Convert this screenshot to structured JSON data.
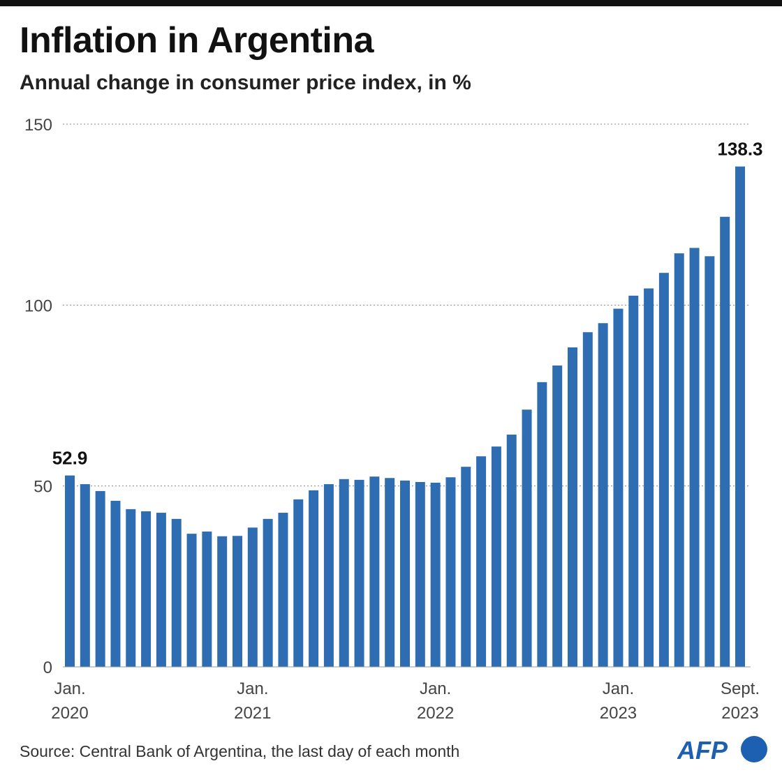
{
  "title": "Inflation in Argentina",
  "subtitle": "Annual change in consumer price index, in %",
  "source": "Source: Central Bank of Argentina, the last day of each month",
  "logo_text": "AFP",
  "colors": {
    "bar": "#2f6db3",
    "logo": "#1d5fb0"
  },
  "chart_data": {
    "type": "bar",
    "title": "Inflation in Argentina",
    "subtitle": "Annual change in consumer price index, in %",
    "ylim": [
      0,
      150
    ],
    "yticks": [
      0,
      50,
      100,
      150
    ],
    "grid": true,
    "x_tick_labels": [
      {
        "index": 0,
        "line1": "Jan.",
        "line2": "2020"
      },
      {
        "index": 12,
        "line1": "Jan.",
        "line2": "2021"
      },
      {
        "index": 24,
        "line1": "Jan.",
        "line2": "2022"
      },
      {
        "index": 36,
        "line1": "Jan.",
        "line2": "2023"
      },
      {
        "index": 44,
        "line1": "Sept.",
        "line2": "2023"
      }
    ],
    "categories": [
      "2020-01",
      "2020-02",
      "2020-03",
      "2020-04",
      "2020-05",
      "2020-06",
      "2020-07",
      "2020-08",
      "2020-09",
      "2020-10",
      "2020-11",
      "2020-12",
      "2021-01",
      "2021-02",
      "2021-03",
      "2021-04",
      "2021-05",
      "2021-06",
      "2021-07",
      "2021-08",
      "2021-09",
      "2021-10",
      "2021-11",
      "2021-12",
      "2022-01",
      "2022-02",
      "2022-03",
      "2022-04",
      "2022-05",
      "2022-06",
      "2022-07",
      "2022-08",
      "2022-09",
      "2022-10",
      "2022-11",
      "2022-12",
      "2023-01",
      "2023-02",
      "2023-03",
      "2023-04",
      "2023-05",
      "2023-06",
      "2023-07",
      "2023-08",
      "2023-09"
    ],
    "values": [
      52.9,
      50.5,
      48.6,
      45.9,
      43.6,
      43.0,
      42.6,
      40.9,
      36.8,
      37.4,
      36.1,
      36.2,
      38.5,
      40.9,
      42.6,
      46.3,
      48.8,
      50.5,
      51.9,
      51.7,
      52.6,
      52.2,
      51.5,
      51.1,
      50.9,
      52.4,
      55.3,
      58.2,
      60.9,
      64.2,
      71.1,
      78.7,
      83.3,
      88.3,
      92.5,
      95.0,
      99.0,
      102.6,
      104.6,
      108.9,
      114.3,
      115.8,
      113.5,
      124.4,
      138.3
    ],
    "data_labels": [
      {
        "index": 0,
        "text": "52.9"
      },
      {
        "index": 44,
        "text": "138.3"
      }
    ]
  }
}
